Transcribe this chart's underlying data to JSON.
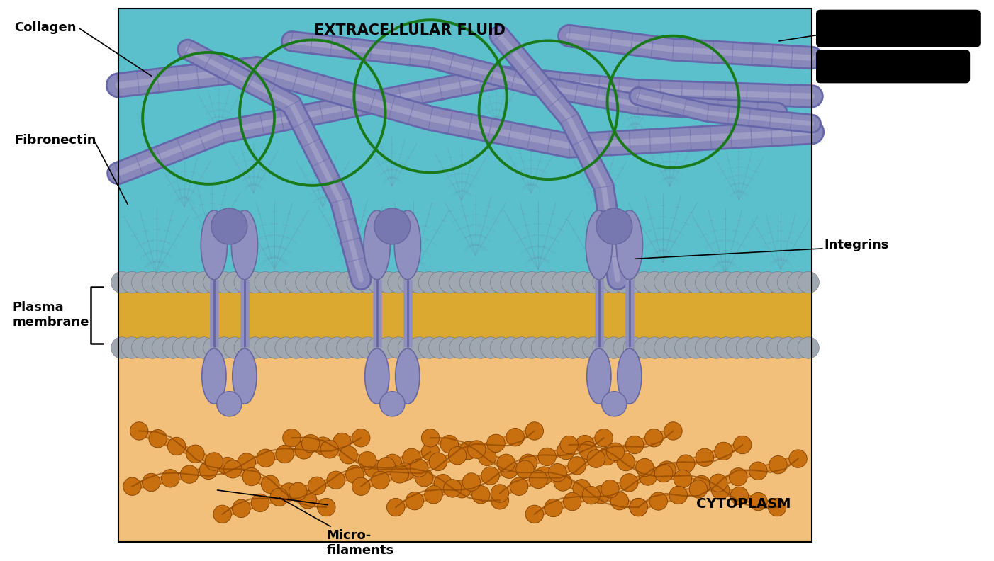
{
  "bg_color": "#FFFFFF",
  "ecf_color": "#5BBFCC",
  "cytoplasm_color": "#F2C07A",
  "membrane_yellow": "#DBA830",
  "membrane_gray": "#9FA8B0",
  "collagen_base": "#8888BB",
  "collagen_light": "#AAAACC",
  "collagen_dark": "#6666AA",
  "integrin_color": "#9090C0",
  "integrin_dark": "#6666A0",
  "green_color": "#1A7A1A",
  "mf_orange": "#C87010",
  "mf_light": "#E09030",
  "pg_color": "#5888A0",
  "title_ecf": "EXTRACELLULAR FLUID",
  "title_cyto": "CYTOPLASM",
  "label_collagen": "Collagen",
  "label_fibronectin": "Fibronectin",
  "label_integrins": "Integrins",
  "label_plasma": "Plasma\nmembrane",
  "label_micro": "Micro-\nfilaments"
}
